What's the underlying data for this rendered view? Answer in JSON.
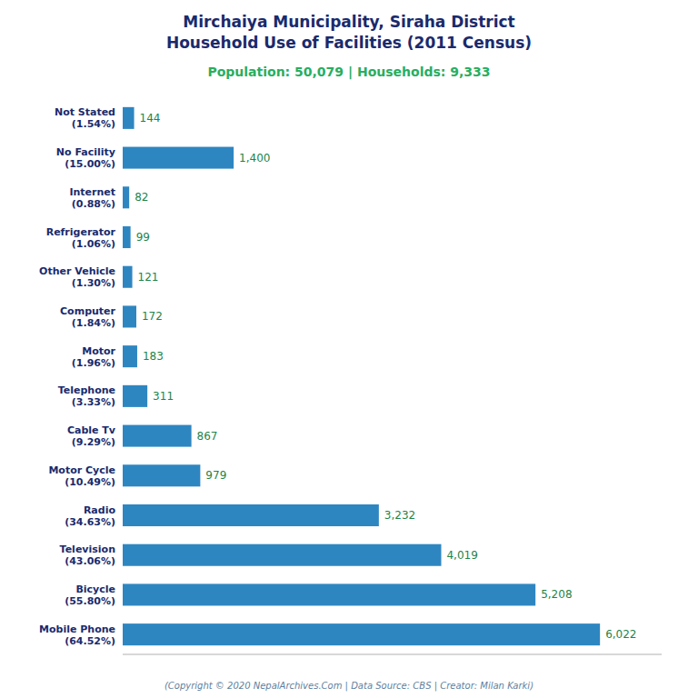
{
  "chart_data": {
    "type": "bar",
    "orientation": "horizontal",
    "title": "Mirchaiya Municipality, Siraha District\nHousehold Use of Facilities (2011 Census)",
    "subtitle": "Population: 50,079 | Households: 9,333",
    "annotations": [
      "(Copyright © 2020 NepalArchives.Com | Data Source: CBS | Creator: Milan Karki)"
    ],
    "categories": [
      "Mobile Phone\n(64.52%)",
      "Bicycle\n(55.80%)",
      "Television\n(43.06%)",
      "Radio\n(34.63%)",
      "Motor Cycle\n(10.49%)",
      "Cable Tv\n(9.29%)",
      "Telephone\n(3.33%)",
      "Motor\n(1.96%)",
      "Computer\n(1.84%)",
      "Other Vehicle\n(1.30%)",
      "Refrigerator\n(1.06%)",
      "Internet\n(0.88%)",
      "No Facility\n(15.00%)",
      "Not Stated\n(1.54%)"
    ],
    "values": [
      6022,
      5208,
      4019,
      3232,
      979,
      867,
      311,
      183,
      172,
      121,
      99,
      82,
      1400,
      144
    ],
    "value_labels": [
      "6,022",
      "5,208",
      "4,019",
      "3,232",
      "979",
      "867",
      "311",
      "183",
      "172",
      "121",
      "99",
      "82",
      "1,400",
      "144"
    ],
    "data_labels": true,
    "color": "#2e86c1",
    "xlim": [
      0,
      6800
    ],
    "tick_labels": "y",
    "grid": false
  }
}
